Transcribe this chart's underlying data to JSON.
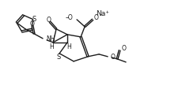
{
  "bg": "#ffffff",
  "lc": "#1c1c1c",
  "lw": 1.0,
  "fs": 5.5,
  "fs_na": 6.5,
  "figsize": [
    2.16,
    1.14
  ],
  "dpi": 100,
  "xlim": [
    -5,
    211
  ],
  "ylim": [
    -5,
    109
  ]
}
